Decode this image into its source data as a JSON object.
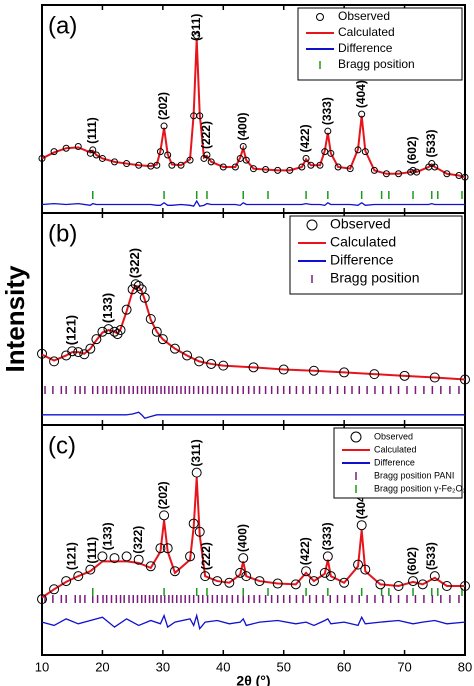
{
  "chart_data": [
    {
      "type": "line",
      "title": "(a)",
      "xlim": [
        10,
        80
      ],
      "xticks": [
        10,
        20,
        30,
        40,
        50,
        60,
        70,
        80
      ],
      "ylim": [
        -22,
        100
      ],
      "legend": "top-right",
      "x": [
        10,
        12,
        14,
        16,
        18,
        18.4,
        19,
        20,
        22,
        24,
        26,
        28,
        29,
        29.6,
        30.2,
        30.8,
        31.5,
        33,
        34.5,
        35.1,
        35.6,
        36.1,
        36.8,
        37.3,
        38,
        40,
        42,
        42.8,
        43.3,
        43.8,
        45,
        47,
        49,
        51,
        53,
        53.7,
        54.5,
        56,
        56.8,
        57.3,
        57.8,
        59,
        61,
        62.3,
        62.9,
        63.5,
        65,
        67,
        69,
        71,
        71.4,
        72,
        74,
        74.5,
        75,
        77,
        79,
        80
      ],
      "series": [
        {
          "name": "Observed",
          "style": "markers",
          "color": "#000000",
          "values": [
            10,
            14,
            16,
            17,
            13,
            15,
            12,
            10,
            8,
            7,
            6,
            5.5,
            6,
            14,
            29,
            12,
            6,
            6,
            9,
            35,
            82,
            35,
            10,
            12,
            8,
            5,
            5,
            10,
            17,
            9,
            4,
            3.5,
            3,
            3,
            5,
            10,
            6,
            6,
            14,
            26,
            13,
            5,
            4,
            15,
            36,
            14,
            3,
            1,
            1,
            2,
            3,
            2,
            5,
            7,
            5,
            1,
            0,
            -1
          ]
        },
        {
          "name": "Calculated",
          "style": "line",
          "color": "#e8141c",
          "values": [
            10,
            13.5,
            16,
            16.5,
            13.5,
            14.5,
            12,
            10,
            8,
            7,
            6,
            5.5,
            6.5,
            14.5,
            28,
            12.5,
            6.5,
            6,
            9.5,
            36,
            80,
            36,
            10.5,
            11.5,
            8,
            5,
            5,
            10.5,
            16,
            9,
            4,
            3.5,
            3,
            3,
            5,
            9.5,
            6,
            6,
            14.5,
            25,
            13,
            5,
            4,
            15.5,
            35,
            14.5,
            3,
            1,
            1,
            2,
            3,
            2,
            5,
            6.5,
            5,
            1,
            0,
            -1
          ]
        },
        {
          "name": "Difference",
          "style": "line",
          "color": "#1010d0",
          "values": [
            -17,
            -16.5,
            -17,
            -16.5,
            -17.5,
            -16.5,
            -17,
            -17,
            -17,
            -17,
            -17,
            -17,
            -17.5,
            -17.5,
            -16,
            -17.5,
            -17.5,
            -17,
            -17.5,
            -18,
            -15,
            -18,
            -17.5,
            -16.5,
            -17,
            -17,
            -17,
            -17.5,
            -16,
            -17,
            -17,
            -17,
            -17,
            -17,
            -17,
            -16.5,
            -17,
            -17,
            -17.5,
            -16,
            -17,
            -17,
            -17,
            -17.5,
            -16,
            -17.5,
            -17,
            -17,
            -17,
            -17,
            -17,
            -17,
            -17,
            -16.5,
            -17,
            -17,
            -17,
            -17
          ]
        }
      ],
      "bragg": [
        {
          "name": "Bragg position",
          "color": "#1a9a1a",
          "positions": [
            18.4,
            30.2,
            35.6,
            37.3,
            43.3,
            47.4,
            53.7,
            57.3,
            62.9,
            66.2,
            67.4,
            71.4,
            74.5,
            75.5,
            79.5
          ]
        }
      ],
      "peak_labels": [
        {
          "text": "(111)",
          "x": 18.4,
          "color": "#000000"
        },
        {
          "text": "(202)",
          "x": 30.2,
          "color": "#000000"
        },
        {
          "text": "(311)",
          "x": 35.6,
          "color": "#000000"
        },
        {
          "text": "(222)",
          "x": 37.3,
          "color": "#000000"
        },
        {
          "text": "(400)",
          "x": 43.3,
          "color": "#000000"
        },
        {
          "text": "(422)",
          "x": 53.7,
          "color": "#000000"
        },
        {
          "text": "(333)",
          "x": 57.3,
          "color": "#000000"
        },
        {
          "text": "(404)",
          "x": 62.9,
          "color": "#000000"
        },
        {
          "text": "(602)",
          "x": 71.4,
          "color": "#000000"
        },
        {
          "text": "(533)",
          "x": 74.5,
          "color": "#000000"
        }
      ]
    },
    {
      "type": "line",
      "title": "(b)",
      "ylabel": "Intensity",
      "xlim": [
        10,
        80
      ],
      "xticks": [
        10,
        20,
        30,
        40,
        50,
        60,
        70,
        80
      ],
      "ylim": [
        -25,
        100
      ],
      "legend": "top-right",
      "x": [
        10,
        12,
        14,
        15,
        16,
        17,
        18,
        19,
        20,
        21,
        22,
        22.5,
        23,
        24,
        25,
        25.5,
        26,
        26.5,
        27,
        28,
        29,
        30,
        32,
        34,
        36,
        38,
        40,
        45,
        50,
        55,
        60,
        65,
        70,
        75,
        80
      ],
      "series": [
        {
          "name": "Observed",
          "style": "markers",
          "color": "#000000",
          "values": [
            17,
            12.5,
            16,
            18.5,
            18,
            16.7,
            20,
            25.6,
            30,
            31.5,
            30,
            28.6,
            31,
            43,
            55,
            58,
            57,
            55,
            50,
            37.5,
            30,
            25.6,
            20,
            16,
            12.5,
            11,
            10,
            9,
            7.7,
            7,
            6,
            5,
            4,
            3,
            1.8
          ]
        },
        {
          "name": "Calculated",
          "style": "line",
          "color": "#e8141c",
          "values": [
            16.5,
            13,
            16,
            18,
            18,
            17,
            20,
            25,
            29.5,
            31,
            30,
            29,
            31.5,
            42,
            54,
            57,
            56.5,
            54,
            49,
            37,
            30,
            25.5,
            20,
            16,
            12.5,
            11,
            10,
            9,
            7.7,
            7,
            6,
            5,
            4,
            3,
            1.8
          ]
        },
        {
          "name": "Difference",
          "style": "line",
          "color": "#1010d0",
          "values": [
            -19,
            -19,
            -19,
            -19,
            -19,
            -19,
            -19,
            -19,
            -19,
            -19,
            -19,
            -19,
            -19,
            -19,
            -18.5,
            -18,
            -17.5,
            -19,
            -21,
            -20,
            -19,
            -19,
            -19,
            -19,
            -19,
            -19,
            -19,
            -19,
            -19,
            -19,
            -19,
            -19,
            -19,
            -19,
            -19
          ]
        }
      ],
      "bragg": [
        {
          "name": "Bragg position",
          "color": "#7a1a7a",
          "positions": [
            10.5,
            11.8,
            13.2,
            14.0,
            15.5,
            16.3,
            17.1,
            18.4,
            19.2,
            20.1,
            20.7,
            21.5,
            22.3,
            23.0,
            23.6,
            24.4,
            25.1,
            25.8,
            26.5,
            27.1,
            27.8,
            28.4,
            29.0,
            29.7,
            30.3,
            31.0,
            31.6,
            32.3,
            33.0,
            33.7,
            34.4,
            35.1,
            35.9,
            36.6,
            37.4,
            38.2,
            39.0,
            39.8,
            40.6,
            41.5,
            42.4,
            43.3,
            44.2,
            45.1,
            46.0,
            47.0,
            48.0,
            49.0,
            50.0,
            51.0,
            52.1,
            53.2,
            54.3,
            55.4,
            56.5,
            57.7,
            58.9,
            60.1,
            61.3,
            62.5,
            63.8,
            65.1,
            66.4,
            67.7,
            69.0,
            70.4,
            71.8,
            73.2,
            74.6,
            76.0,
            77.5,
            79.0
          ]
        }
      ],
      "peak_labels": [
        {
          "text": "(121)",
          "x": 15,
          "color": "#7a1a7a"
        },
        {
          "text": "(133)",
          "x": 21,
          "color": "#7a1a7a"
        },
        {
          "text": "(322)",
          "x": 25.5,
          "color": "#7a1a7a"
        }
      ]
    },
    {
      "type": "line",
      "title": "(c)",
      "xlabel": "2θ (°)",
      "xlim": [
        10,
        80
      ],
      "xticks": [
        10,
        20,
        30,
        40,
        50,
        60,
        70,
        80
      ],
      "ylim": [
        -30,
        110
      ],
      "legend": "top-right",
      "x": [
        10,
        12,
        14,
        16,
        18,
        20,
        22,
        24,
        26,
        28,
        29.6,
        30.2,
        30.8,
        32,
        34.5,
        35.1,
        35.6,
        36.1,
        37,
        39,
        41,
        42.8,
        43.3,
        43.8,
        46,
        49,
        52,
        53.7,
        55,
        56.8,
        57.3,
        57.8,
        60,
        62.3,
        62.9,
        63.5,
        66,
        69,
        71.4,
        73,
        75,
        77,
        80
      ],
      "series": [
        {
          "name": "Observed",
          "style": "markers",
          "color": "#000000",
          "values": [
            4,
            10,
            15,
            18,
            22,
            30,
            29,
            30,
            28,
            24,
            35,
            55,
            35,
            21,
            30,
            50,
            81,
            45,
            18,
            15,
            14,
            20,
            29,
            18,
            15,
            13.5,
            13,
            21,
            15,
            20,
            30,
            18,
            14,
            25,
            49,
            22,
            13,
            12,
            15,
            13,
            18,
            12,
            12
          ]
        },
        {
          "name": "Calculated",
          "style": "line",
          "color": "#e8141c",
          "values": [
            5,
            10,
            14.5,
            18,
            21,
            27,
            27,
            27,
            26,
            23,
            33,
            52,
            33,
            20,
            28,
            48,
            78,
            43,
            18,
            15,
            14,
            19,
            27,
            18,
            15,
            13.5,
            13,
            20,
            15,
            19.5,
            28,
            18,
            14,
            24,
            46,
            21,
            13,
            12,
            14.5,
            13,
            17,
            12,
            12
          ]
        },
        {
          "name": "Difference",
          "style": "line",
          "color": "#1010d0",
          "values": [
            -10,
            -12,
            -8,
            -11,
            -9,
            -7,
            -13,
            -8,
            -12,
            -9,
            -11,
            -6,
            -13,
            -10,
            -8,
            -12,
            -6,
            -14,
            -10,
            -9,
            -11,
            -10,
            -8,
            -12,
            -10,
            -9,
            -11,
            -10,
            -12,
            -9,
            -8,
            -11,
            -10,
            -12,
            -7,
            -11,
            -10,
            -9,
            -11,
            -10,
            -9,
            -11,
            -10
          ]
        }
      ],
      "bragg": [
        {
          "name": "Bragg position PANI",
          "color": "#7a1a7a",
          "positions": [
            10.5,
            11.8,
            13.2,
            14.0,
            15.5,
            16.3,
            17.1,
            18.4,
            19.2,
            20.1,
            20.7,
            21.5,
            22.3,
            23.0,
            23.6,
            24.4,
            25.1,
            25.8,
            26.5,
            27.1,
            27.8,
            28.4,
            29.0,
            29.7,
            30.3,
            31.0,
            31.6,
            32.3,
            33.0,
            33.7,
            34.4,
            35.1,
            35.9,
            36.6,
            37.4,
            38.2,
            39.0,
            39.8,
            40.6,
            41.5,
            42.4,
            43.3,
            44.2,
            45.1,
            46.0,
            47.0,
            48.0,
            49.0,
            50.0,
            51.0,
            52.1,
            53.2,
            54.3,
            55.4,
            56.5,
            57.7,
            58.9,
            60.1,
            61.3,
            62.5,
            63.8,
            65.1,
            66.4,
            67.7,
            69.0,
            70.4,
            71.8,
            73.2,
            74.6,
            76.0,
            77.5,
            79.0
          ]
        },
        {
          "name": "Bragg position γ-Fe₂O₃",
          "color": "#1a9a1a",
          "positions": [
            18.4,
            30.2,
            35.6,
            37.3,
            43.3,
            47.4,
            53.7,
            57.3,
            62.9,
            66.2,
            67.4,
            71.4,
            74.5,
            75.5,
            79.5
          ]
        }
      ],
      "peak_labels": [
        {
          "text": "(121)",
          "x": 15,
          "color": "#7a1a7a"
        },
        {
          "text": "(111)",
          "x": 18.4,
          "color": "#1a9a1a"
        },
        {
          "text": "(133)",
          "x": 21,
          "color": "#7a1a7a"
        },
        {
          "text": "(322)",
          "x": 26,
          "color": "#7a1a7a"
        },
        {
          "text": "(202)",
          "x": 30.2,
          "color": "#1a9a1a"
        },
        {
          "text": "(311)",
          "x": 35.6,
          "color": "#1a9a1a"
        },
        {
          "text": "(222)",
          "x": 37.3,
          "color": "#1a9a1a"
        },
        {
          "text": "(400)",
          "x": 43.3,
          "color": "#1a9a1a"
        },
        {
          "text": "(422)",
          "x": 53.7,
          "color": "#1a9a1a"
        },
        {
          "text": "(333)",
          "x": 57.3,
          "color": "#1a9a1a"
        },
        {
          "text": "(404)",
          "x": 62.9,
          "color": "#1a9a1a"
        },
        {
          "text": "(602)",
          "x": 71.4,
          "color": "#1a9a1a"
        },
        {
          "text": "(533)",
          "x": 74.5,
          "color": "#1a9a1a"
        }
      ]
    }
  ]
}
